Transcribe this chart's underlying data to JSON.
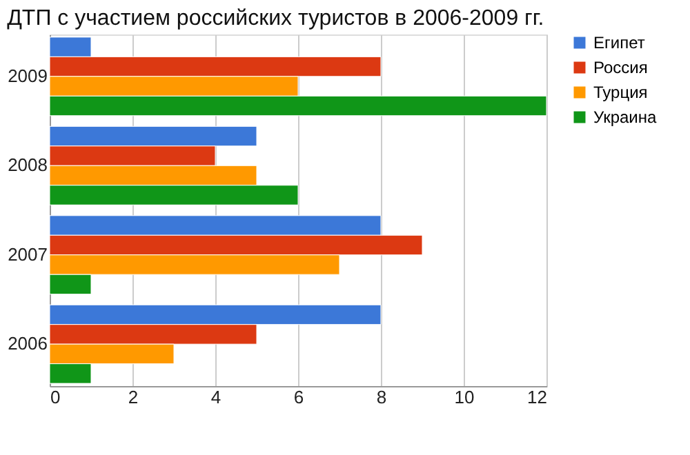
{
  "chart_data": {
    "type": "bar",
    "orientation": "horizontal",
    "title": "ДТП с участием российских туристов в 2006-2009 гг.",
    "categories": [
      "2009",
      "2008",
      "2007",
      "2006"
    ],
    "series": [
      {
        "name": "Египет",
        "color": "#3c78d8",
        "values": [
          1,
          5,
          8,
          8
        ]
      },
      {
        "name": "Россия",
        "color": "#dc3912",
        "values": [
          8,
          4,
          9,
          5
        ]
      },
      {
        "name": "Турция",
        "color": "#ff9900",
        "values": [
          6,
          5,
          7,
          3
        ]
      },
      {
        "name": "Украина",
        "color": "#109618",
        "values": [
          12,
          6,
          1,
          1
        ]
      }
    ],
    "xlim": [
      0,
      12
    ],
    "xticks": [
      0,
      2,
      4,
      6,
      8,
      10,
      12
    ],
    "grid": "x",
    "legend": "right"
  }
}
